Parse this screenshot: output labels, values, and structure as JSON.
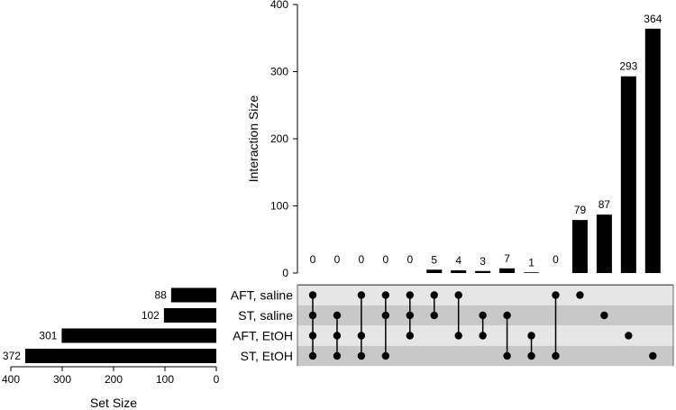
{
  "chart_data": {
    "type": "bar",
    "ylabel": "Interaction Size",
    "xlabel": "Set Size",
    "ylim": [
      0,
      400
    ],
    "yticks": [
      0,
      100,
      200,
      300,
      400
    ],
    "set_axis_lim": [
      0,
      400
    ],
    "set_axis_ticks": [
      400,
      300,
      200,
      100,
      0
    ],
    "sets": [
      {
        "name": "AFT, saline",
        "size": 88,
        "size_label": "88"
      },
      {
        "name": "ST, saline",
        "size": 102,
        "size_label": "102"
      },
      {
        "name": "AFT, EtOH",
        "size": 301,
        "size_label": "301"
      },
      {
        "name": "ST, EtOH",
        "size": 372,
        "size_label": "372"
      }
    ],
    "intersections": [
      {
        "members": [
          0,
          1,
          2,
          3
        ],
        "value": 0,
        "label": "0"
      },
      {
        "members": [
          1,
          2,
          3
        ],
        "value": 0,
        "label": "0"
      },
      {
        "members": [
          0,
          2,
          3
        ],
        "value": 0,
        "label": "0"
      },
      {
        "members": [
          0,
          1,
          3
        ],
        "value": 0,
        "label": "0"
      },
      {
        "members": [
          0,
          1,
          2
        ],
        "value": 0,
        "label": "0"
      },
      {
        "members": [
          0,
          1
        ],
        "value": 5,
        "label": "5"
      },
      {
        "members": [
          0,
          2
        ],
        "value": 4,
        "label": "4"
      },
      {
        "members": [
          1,
          2
        ],
        "value": 3,
        "label": "3"
      },
      {
        "members": [
          1,
          3
        ],
        "value": 7,
        "label": "7"
      },
      {
        "members": [
          2,
          3
        ],
        "value": 1,
        "label": "1"
      },
      {
        "members": [
          0,
          3
        ],
        "value": 0,
        "label": "0"
      },
      {
        "members": [
          0
        ],
        "value": 79,
        "label": "79"
      },
      {
        "members": [
          1
        ],
        "value": 87,
        "label": "87"
      },
      {
        "members": [
          2
        ],
        "value": 293,
        "label": "293"
      },
      {
        "members": [
          3
        ],
        "value": 364,
        "label": "364"
      }
    ],
    "colors": {
      "bar": "#000000",
      "dot": "#000000",
      "row_light": "#e6e6e6",
      "row_dark": "#c8c8c8",
      "axis": "#000000"
    }
  }
}
